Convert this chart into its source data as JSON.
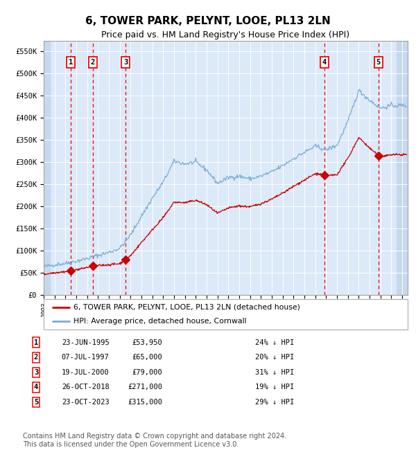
{
  "title": "6, TOWER PARK, PELYNT, LOOE, PL13 2LN",
  "subtitle": "Price paid vs. HM Land Registry's House Price Index (HPI)",
  "title_fontsize": 11,
  "subtitle_fontsize": 9,
  "ylim": [
    0,
    575000
  ],
  "yticks": [
    0,
    50000,
    100000,
    150000,
    200000,
    250000,
    300000,
    350000,
    400000,
    450000,
    500000,
    550000
  ],
  "ytick_labels": [
    "£0",
    "£50K",
    "£100K",
    "£150K",
    "£200K",
    "£250K",
    "£300K",
    "£350K",
    "£400K",
    "£450K",
    "£500K",
    "£550K"
  ],
  "xlim_start": 1993.0,
  "xlim_end": 2026.5,
  "plot_bg_color": "#dce9f8",
  "hatch_color": "#c5d8ee",
  "sale_color": "#cc0000",
  "hpi_color": "#7aadd4",
  "vline_color": "#ee0000",
  "sale_dates": [
    1995.47,
    1997.52,
    2000.54,
    2018.82,
    2023.81
  ],
  "sale_prices": [
    53950,
    65000,
    79000,
    271000,
    315000
  ],
  "sale_labels": [
    "1",
    "2",
    "3",
    "4",
    "5"
  ],
  "legend_sale_label": "6, TOWER PARK, PELYNT, LOOE, PL13 2LN (detached house)",
  "legend_hpi_label": "HPI: Average price, detached house, Cornwall",
  "table_data": [
    [
      "1",
      "23-JUN-1995",
      "£53,950",
      "24% ↓ HPI"
    ],
    [
      "2",
      "07-JUL-1997",
      "£65,000",
      "20% ↓ HPI"
    ],
    [
      "3",
      "19-JUL-2000",
      "£79,000",
      "31% ↓ HPI"
    ],
    [
      "4",
      "26-OCT-2018",
      "£271,000",
      "19% ↓ HPI"
    ],
    [
      "5",
      "23-OCT-2023",
      "£315,000",
      "29% ↓ HPI"
    ]
  ],
  "footnote": "Contains HM Land Registry data © Crown copyright and database right 2024.\nThis data is licensed under the Open Government Licence v3.0.",
  "footnote_fontsize": 7,
  "hpi_anchors_year": [
    1993,
    1994,
    1995,
    1996,
    1997,
    1998,
    1999,
    2000,
    2001,
    2002,
    2003,
    2004,
    2005,
    2006,
    2007,
    2008,
    2009,
    2010,
    2011,
    2012,
    2013,
    2014,
    2015,
    2016,
    2017,
    2018,
    2019,
    2020,
    2021,
    2022,
    2023,
    2024,
    2025,
    2026
  ],
  "hpi_anchors_val": [
    63000,
    68000,
    71000,
    76000,
    82000,
    89000,
    96000,
    105000,
    135000,
    178000,
    218000,
    255000,
    302000,
    296000,
    300000,
    282000,
    252000,
    265000,
    268000,
    262000,
    268000,
    278000,
    292000,
    308000,
    322000,
    336000,
    328000,
    338000,
    392000,
    462000,
    440000,
    422000,
    428000,
    428000
  ]
}
